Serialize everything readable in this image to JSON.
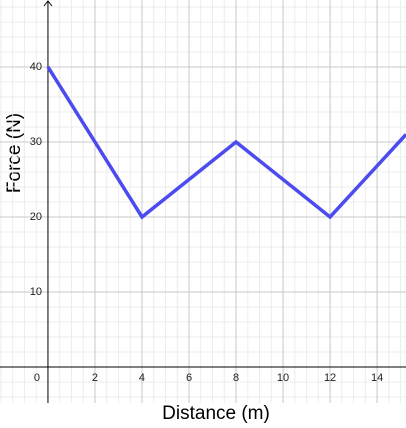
{
  "chart_data": {
    "type": "line",
    "x_label": "Distance (m)",
    "y_label": "Force (N)",
    "x": [
      0,
      4,
      8,
      12,
      15.23
    ],
    "series": [
      {
        "color": "#4b4bef",
        "values": [
          40,
          20,
          30,
          20,
          31
        ]
      }
    ],
    "xlim": [
      -2.04,
      15.23
    ],
    "ylim": [
      -4.8,
      48.93
    ],
    "xticks": [
      0,
      2,
      4,
      6,
      8,
      10,
      12,
      14
    ],
    "yticks": [
      10,
      20,
      30,
      40
    ],
    "grid": true
  }
}
